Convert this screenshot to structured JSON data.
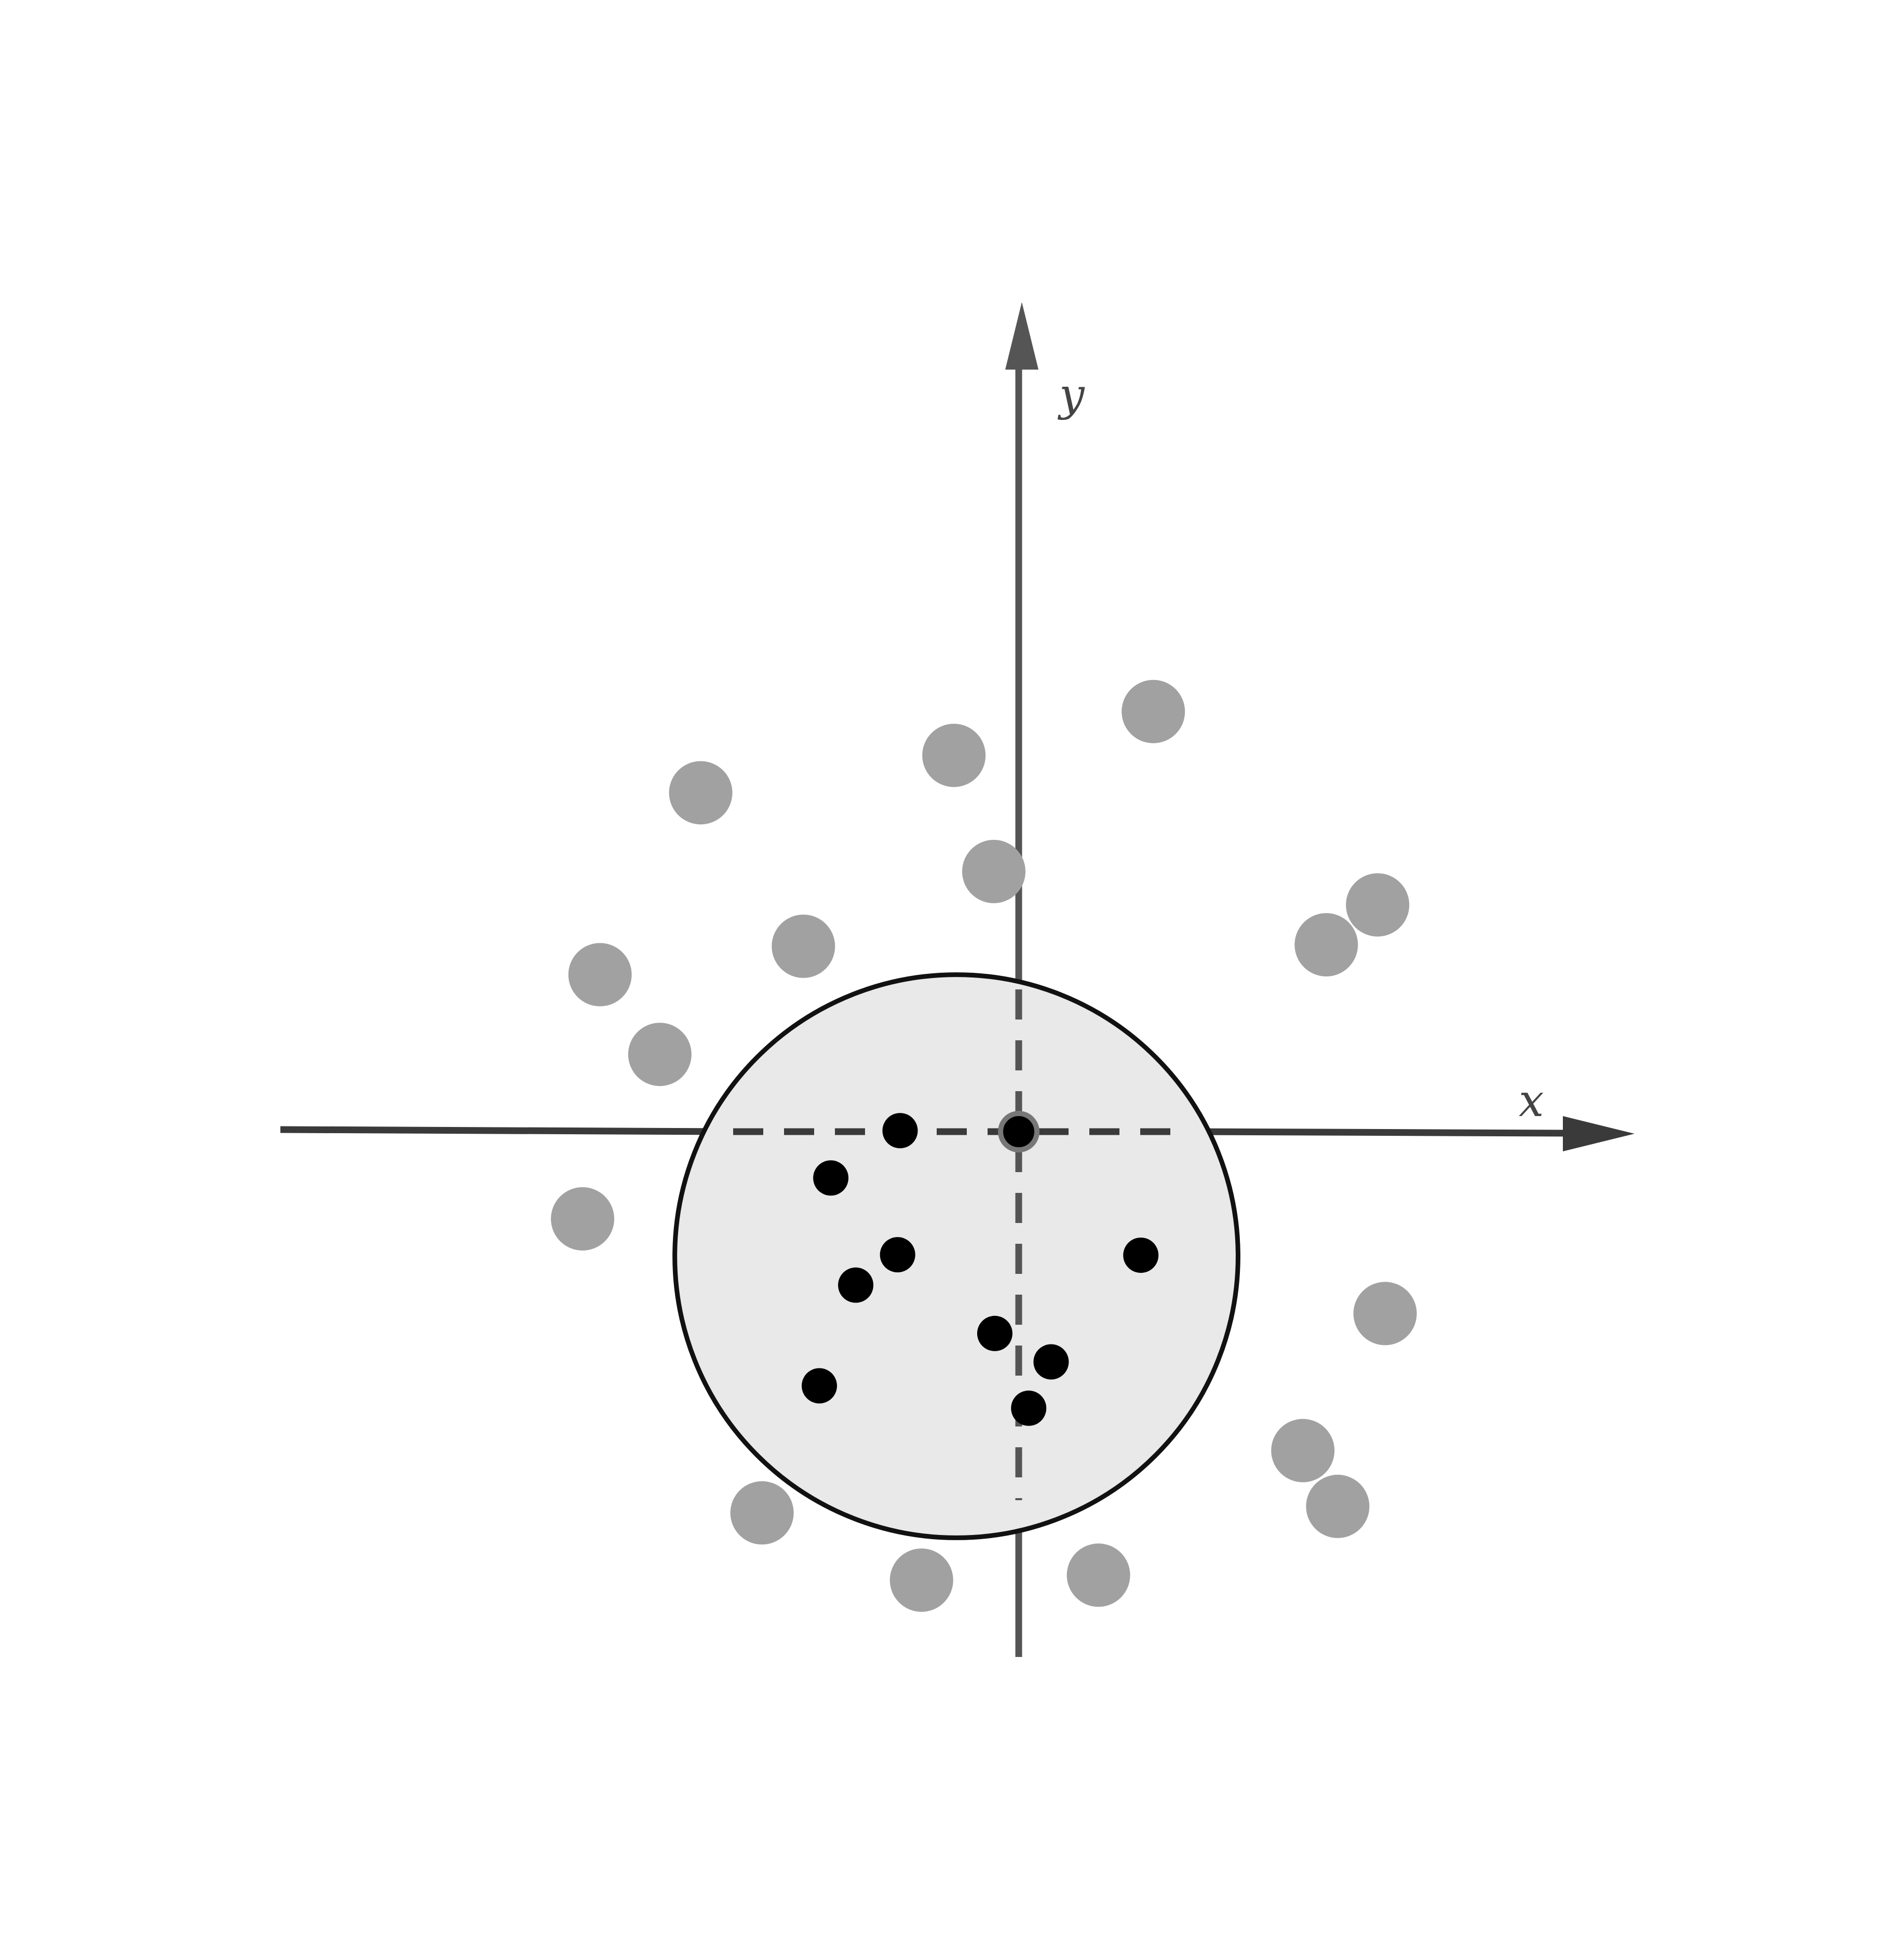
{
  "axes": {
    "x_label": "x",
    "y_label": "y"
  },
  "colors": {
    "axis": "#555555",
    "x_axis": "#3a3a3a",
    "circle_fill": "#e9e9e9",
    "circle_stroke": "#111111",
    "inside_point": "#000000",
    "outside_point": "#a1a1a1",
    "center_point_stroke": "#777777"
  },
  "points_inside": [
    {
      "x": -2.38,
      "y": 0.02
    },
    {
      "x": -3.77,
      "y": -0.93
    },
    {
      "x": -2.43,
      "y": -2.47
    },
    {
      "x": -3.27,
      "y": -3.08
    },
    {
      "x": -4.0,
      "y": -5.1
    },
    {
      "x": -0.48,
      "y": -4.05
    },
    {
      "x": 0.65,
      "y": -4.62
    },
    {
      "x": 0.2,
      "y": -5.55
    },
    {
      "x": 2.45,
      "y": -2.48
    }
  ],
  "points_outside": [
    {
      "x": 2.7,
      "y": 8.43
    },
    {
      "x": -1.3,
      "y": 7.55
    },
    {
      "x": -6.38,
      "y": 6.8
    },
    {
      "x": -0.5,
      "y": 5.22
    },
    {
      "x": 7.2,
      "y": 4.55
    },
    {
      "x": 6.17,
      "y": 3.75
    },
    {
      "x": -4.32,
      "y": 3.72
    },
    {
      "x": -8.4,
      "y": 3.15
    },
    {
      "x": -7.2,
      "y": 1.55
    },
    {
      "x": -8.75,
      "y": -1.75
    },
    {
      "x": 7.35,
      "y": -3.65
    },
    {
      "x": 5.7,
      "y": -6.4
    },
    {
      "x": 6.4,
      "y": -7.52
    },
    {
      "x": -5.15,
      "y": -7.65
    },
    {
      "x": -1.95,
      "y": -9.0
    },
    {
      "x": 1.6,
      "y": -8.9
    }
  ],
  "circle": {
    "cx": -1.25,
    "cy": -2.5,
    "r": 5.65
  }
}
